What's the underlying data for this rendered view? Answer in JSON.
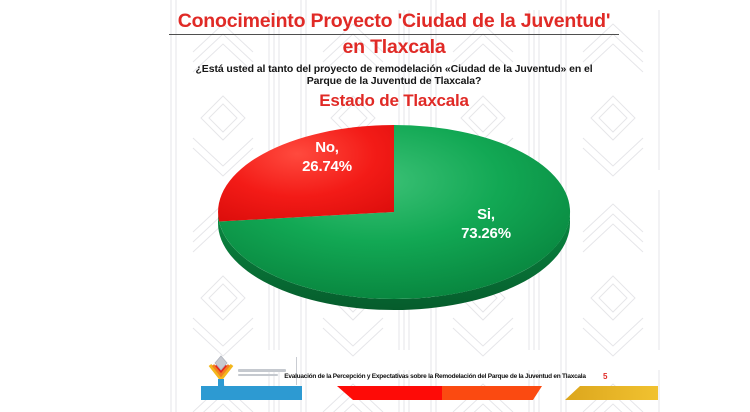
{
  "slide": {
    "title_line1": "Conocimeinto Proyecto 'Ciudad de la Juventud'",
    "title_line2": "en Tlaxcala",
    "question_line1": "¿Está usted al tanto del proyecto de remodelación «Ciudad de la Juventud» en el",
    "question_line2": "Parque de la Juventud de Tlaxcala?",
    "region_subtitle": "Estado de Tlaxcala"
  },
  "chart_data": {
    "type": "pie",
    "style": "3d-pie",
    "title": "Conocimeinto Proyecto 'Ciudad de la Juventud' en Tlaxcala",
    "subtitle": "Estado de Tlaxcala",
    "categories": [
      "Si",
      "No"
    ],
    "values": [
      73.26,
      26.74
    ],
    "unit": "%",
    "start_angle_deg": 90,
    "no_slice_position": "upper-left",
    "label_lines": {
      "si": [
        "Si,",
        "73.26%"
      ],
      "no": [
        "No,",
        "26.74%"
      ]
    },
    "colors": {
      "si": "#0ea24c",
      "no": "#f31b17"
    },
    "label_color": "#ffffff",
    "legend": "none"
  },
  "footer": {
    "caption": "Evaluación de la Percepción y Expectativas sobre la Remodelación del Parque de la Juventud en Tlaxcala",
    "page_number": "5",
    "logo_icon": "tlaxcala-government-logo",
    "bar_colors": [
      "#2d9ad2",
      "#fe0b07",
      "#fb4a11",
      "#e9b51f"
    ]
  },
  "colors": {
    "title_red": "#e02a26",
    "question_black": "#161616",
    "watermark_gray": "#e3e3e7"
  }
}
